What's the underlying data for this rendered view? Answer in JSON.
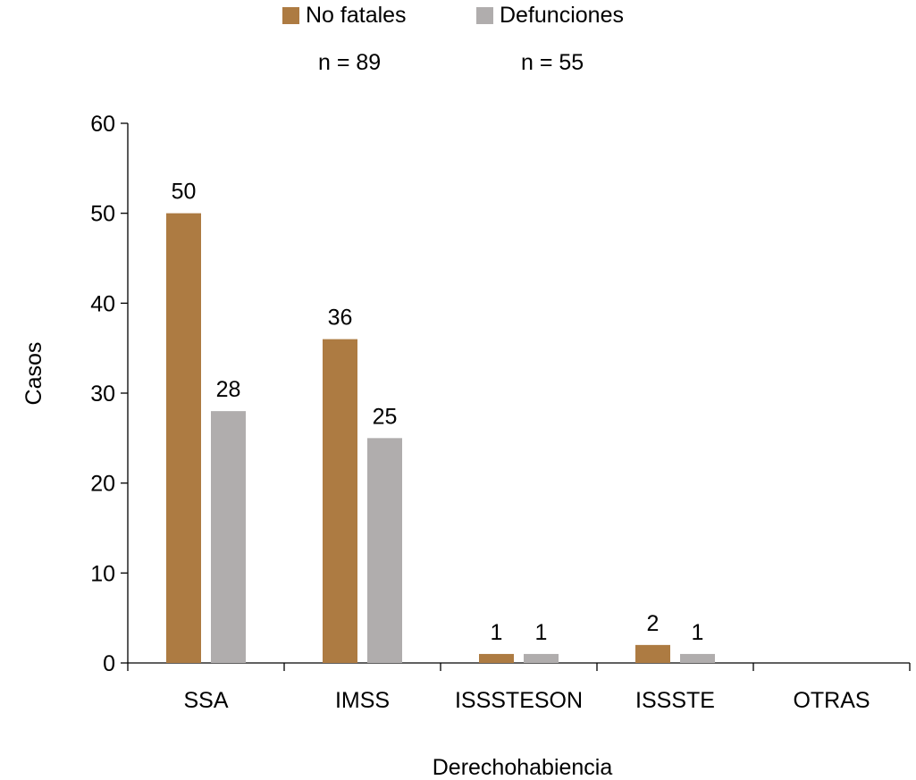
{
  "chart_data": {
    "type": "bar",
    "title": "",
    "xlabel": "Derechohabiencia",
    "ylabel": "Casos",
    "ylim": [
      0,
      60
    ],
    "yticks": [
      0,
      10,
      20,
      30,
      40,
      50,
      60
    ],
    "categories": [
      "SSA",
      "IMSS",
      "ISSSTESON",
      "ISSSTE",
      "OTRAS"
    ],
    "series": [
      {
        "name": "No fatales",
        "n_label": "n = 89",
        "color": "#ad7b42",
        "values": [
          50,
          36,
          1,
          2,
          null
        ],
        "labels": [
          "50",
          "36",
          "1",
          "2",
          ""
        ]
      },
      {
        "name": "Defunciones",
        "n_label": "n = 55",
        "color": "#b0adad",
        "values": [
          28,
          25,
          1,
          1,
          null
        ],
        "labels": [
          "28",
          "25",
          "1",
          "1",
          ""
        ]
      }
    ],
    "legend_position": "top",
    "grid": false
  }
}
